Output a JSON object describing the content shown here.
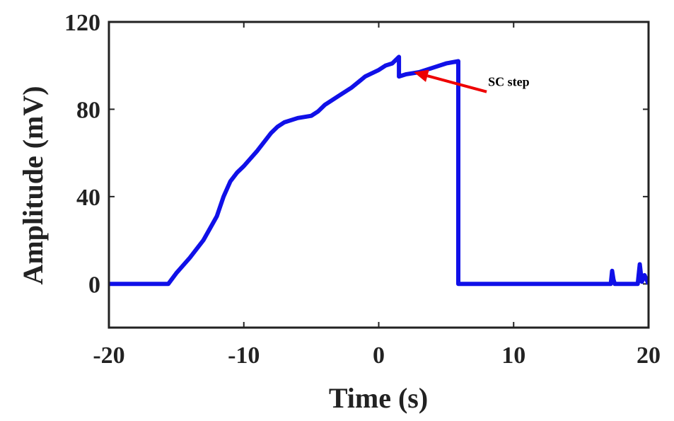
{
  "chart_data": {
    "type": "line",
    "title": "",
    "xlabel": "Time (s)",
    "ylabel": "Amplitude (mV)",
    "xlim": [
      -20,
      20
    ],
    "ylim": [
      -20,
      120
    ],
    "xticks": [
      -20,
      -10,
      0,
      10,
      20
    ],
    "yticks": [
      0,
      40,
      80,
      120
    ],
    "xtick_labels": [
      "-20",
      "-10",
      "0",
      "10",
      "20"
    ],
    "ytick_labels": [
      "0",
      "40",
      "80",
      "120"
    ],
    "grid": false,
    "series": [
      {
        "name": "signal",
        "color": "#1010e8",
        "x": [
          -20,
          -19,
          -18,
          -17,
          -16,
          -15.6,
          -15,
          -14,
          -13,
          -12,
          -11.5,
          -11,
          -10.5,
          -10,
          -9,
          -8,
          -7.5,
          -7,
          -6,
          -5,
          -4.5,
          -4,
          -3.5,
          -3,
          -2,
          -1,
          0,
          0.5,
          1,
          1.5,
          1.5,
          2,
          3,
          4,
          5,
          5.9,
          5.9,
          7,
          8,
          10,
          12,
          14,
          16,
          17.2,
          17.3,
          17.4,
          17.5,
          18,
          19,
          19.2,
          19.35,
          19.5,
          19.7,
          20
        ],
        "y": [
          0,
          0,
          0,
          0,
          0,
          0,
          5,
          12,
          20,
          31,
          40,
          47,
          51,
          54,
          61,
          69,
          72,
          74,
          76,
          77,
          79,
          82,
          84,
          86,
          90,
          95,
          98,
          100,
          101,
          104,
          95,
          96,
          97,
          99,
          101,
          102,
          0,
          0,
          0,
          0,
          0,
          0,
          0,
          0,
          6,
          2,
          0,
          0,
          0,
          0,
          9,
          1,
          4,
          0
        ]
      }
    ],
    "annotations": [
      {
        "text": "SC step",
        "x": 8,
        "y": 88,
        "arrow_to": [
          2.6,
          97
        ]
      }
    ]
  },
  "colors": {
    "line": "#1010e8",
    "arrow": "#ee0000",
    "axis": "#222222"
  }
}
